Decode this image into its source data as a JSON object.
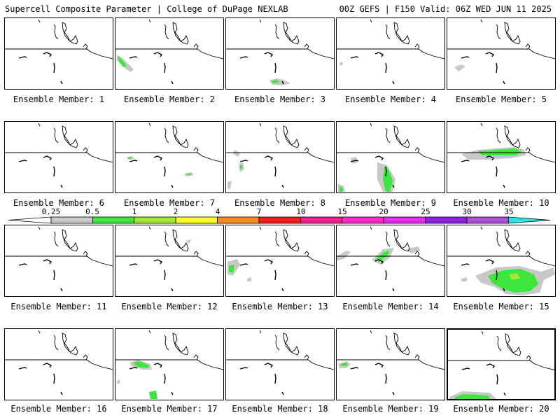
{
  "header": {
    "title": "Supercell Composite Parameter | College of DuPage NEXLAB",
    "run_info": "00Z GEFS | F150 Valid: 06Z WED JUN 11 2025"
  },
  "colorbar": {
    "labels": [
      "0.25",
      "0.5",
      "1",
      "2",
      "4",
      "7",
      "10",
      "15",
      "20",
      "25",
      "30",
      "35"
    ],
    "colors": [
      "#c8c8c8",
      "#3ce63c",
      "#a0e632",
      "#ffff28",
      "#ff8c1e",
      "#f01e1e",
      "#f01e8c",
      "#ff28c8",
      "#e628f0",
      "#8c1ee6",
      "#aa50d2",
      "#28e6e6"
    ]
  },
  "members": [
    {
      "label": "Ensemble Member: 1"
    },
    {
      "label": "Ensemble Member: 2"
    },
    {
      "label": "Ensemble Member: 3"
    },
    {
      "label": "Ensemble Member: 4"
    },
    {
      "label": "Ensemble Member: 5"
    },
    {
      "label": "Ensemble Member: 6"
    },
    {
      "label": "Ensemble Member: 7"
    },
    {
      "label": "Ensemble Member: 8"
    },
    {
      "label": "Ensemble Member: 9"
    },
    {
      "label": "Ensemble Member: 10"
    },
    {
      "label": "Ensemble Member: 11"
    },
    {
      "label": "Ensemble Member: 12"
    },
    {
      "label": "Ensemble Member: 13"
    },
    {
      "label": "Ensemble Member: 14"
    },
    {
      "label": "Ensemble Member: 15"
    },
    {
      "label": "Ensemble Member: 16"
    },
    {
      "label": "Ensemble Member: 17"
    },
    {
      "label": "Ensemble Member: 18"
    },
    {
      "label": "Ensemble Member: 19"
    },
    {
      "label": "Ensemble Member: 20"
    }
  ]
}
